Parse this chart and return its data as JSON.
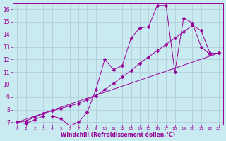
{
  "line1_x": [
    0,
    1,
    2,
    3,
    4,
    5,
    6,
    7,
    8,
    9,
    10,
    11,
    12,
    13,
    14,
    15,
    16,
    17,
    18,
    19,
    20,
    21,
    22,
    23
  ],
  "line1_y": [
    7.0,
    6.9,
    7.2,
    7.5,
    7.5,
    7.3,
    6.7,
    7.0,
    7.8,
    9.6,
    12.0,
    11.2,
    11.5,
    13.7,
    14.5,
    14.6,
    16.3,
    16.3,
    11.0,
    15.3,
    14.9,
    13.0,
    12.4,
    12.5
  ],
  "line2_x": [
    0,
    1,
    2,
    3,
    4,
    5,
    6,
    7,
    8,
    9,
    10,
    11,
    12,
    13,
    14,
    15,
    16,
    17,
    18,
    19,
    20,
    21,
    22,
    23
  ],
  "line2_y": [
    7.0,
    7.1,
    7.4,
    7.7,
    7.9,
    8.1,
    8.3,
    8.5,
    8.8,
    9.1,
    9.6,
    10.1,
    10.6,
    11.1,
    11.7,
    12.2,
    12.7,
    13.2,
    13.7,
    14.2,
    14.7,
    14.3,
    12.5,
    12.5
  ],
  "line3_x": [
    0,
    23
  ],
  "line3_y": [
    7.0,
    12.5
  ],
  "color": "#990099",
  "bg_color": "#c8eaf0",
  "grid_color": "#b0c8d8",
  "xlabel": "Windchill (Refroidissement éolien,°C)",
  "xlabel_color": "#990099",
  "ylabel_min": 7,
  "ylabel_max": 16,
  "xmin": 0,
  "xmax": 23,
  "marker": "D",
  "markersize": 2.5
}
